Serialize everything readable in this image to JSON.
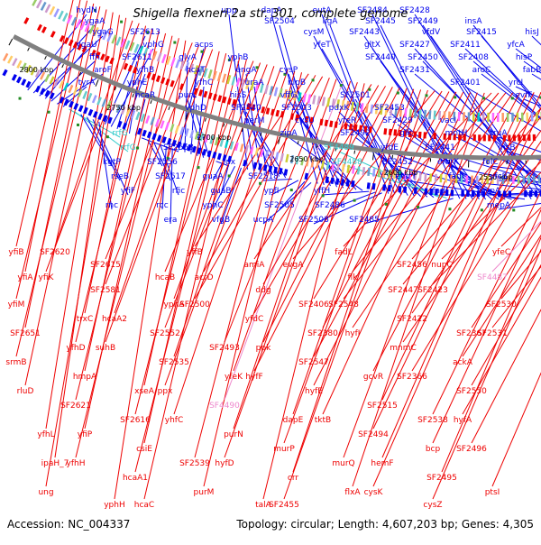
{
  "title": "Shigella flexneri 2a str. 301, complete genome",
  "footer": {
    "accession": "Accession: NC_004337",
    "summary": "Topology: circular; Length: 4,607,203 bp; Genes: 4,305"
  },
  "colors": {
    "forward": "#0000ee",
    "reverse": "#ee0000",
    "rna": "#33cccc",
    "pseudo": "#ee88cc",
    "backbone": "#808080",
    "ticks": "#000000",
    "green": "#228b22"
  },
  "scale_labels": [
    "2800 kbp",
    "2750 kbp",
    "2700 kbp",
    "2650 kbp",
    "2600 kbp",
    "2550 kbp",
    "2500 kbp",
    "2450 kbp"
  ],
  "forward_genes": [
    "hydN",
    "ygaA",
    "ygaG",
    "ygaU",
    "ffh",
    "aroF",
    "tyrA",
    "rrfG",
    "rrfG",
    "kgtP",
    "rseB",
    "yfiF",
    "rnc",
    "SF2613",
    "vphG",
    "SF2611",
    "yfhB",
    "yphE",
    "hcaR",
    "SF2558",
    "SF2556",
    "SF2617",
    "rfic",
    "rcc",
    "era",
    "acps",
    "glyA",
    "hcaT",
    "yfhC",
    "purL",
    "vphD",
    "fdx",
    "guaA",
    "guaB",
    "yphC",
    "vfgB",
    "upp",
    "yphB",
    "engA",
    "uraA",
    "hisS",
    "SF2540",
    "perM",
    "SF2518",
    "ypfI",
    "SF2505",
    "ucpA",
    "dapA",
    "SF2504",
    "cysP",
    "nlpB",
    "vffG",
    "SF2503",
    "cysU",
    "zipA",
    "yffH",
    "SF2486",
    "SF2508",
    "eutA",
    "ligA",
    "cysM",
    "yfeT",
    "SF2501",
    "pdxK",
    "yfeR",
    "SF2492",
    "SF4489",
    "SF4488",
    "SF2485",
    "SF2484",
    "SF2445",
    "SF2443",
    "gltX",
    "SF2440",
    "SF2453",
    "SF2429",
    "glk",
    "yfdE",
    "SF2452",
    "emrY",
    "SF2428",
    "SF2449",
    "vfdV",
    "SF2427",
    "SF2450",
    "SF2431",
    "vacI",
    "mntH",
    "SF2441",
    "emrK",
    "fadI",
    "fadI",
    "insA",
    "SF2415",
    "SF2411",
    "SF2408",
    "aroC",
    "SF2401",
    "truA",
    "insB",
    "folC",
    "yfcB",
    "cvpA",
    "mepA",
    "hisJ",
    "yfcA",
    "hisP",
    "fabB",
    "yrcI",
    "evfF"
  ],
  "reverse_genes": [
    "yfiB",
    "yfiA",
    "yfiM",
    "SF2651",
    "srmB",
    "rluD",
    "yfhL",
    "ipaH_7",
    "ung",
    "SF2620",
    "yfiK",
    "trxC",
    "yfhD",
    "hmpA",
    "SF2621",
    "yfiP",
    "yfhH",
    "yphH",
    "SF2615",
    "SF2581",
    "hcaA2",
    "suhB",
    "xseA",
    "SF2616",
    "csiE",
    "hcaA1",
    "hcaC",
    "hcaB",
    "yphA",
    "SF2552",
    "SF2535",
    "ppx",
    "yhfC",
    "SF2539",
    "purM",
    "yffB",
    "acrD",
    "SF2500",
    "SF2493",
    "yfeK",
    "SF4490",
    "purN",
    "hyfD",
    "talA",
    "amiA",
    "ddg",
    "yfdC",
    "ppk",
    "hyfF",
    "dapE",
    "murP",
    "crr",
    "SF2455",
    "evgA",
    "SF2406",
    "SF2380",
    "SF2547",
    "hyfE",
    "tktB",
    "murQ",
    "flxA",
    "fadL",
    "flk",
    "SF2548",
    "hyfI",
    "gcvR",
    "SF2515",
    "SF2494",
    "hemF",
    "cysK",
    "SF2456",
    "SF2447",
    "SF2422",
    "mnmC",
    "SF2366",
    "SF2538",
    "bcp",
    "SF2495",
    "cysZ",
    "nupC",
    "SF2423",
    "SF2367",
    "ackA",
    "SF2550",
    "hyfA",
    "SF2496",
    "ptsI",
    "yfeC",
    "SF4487",
    "SF2530",
    "SF2531"
  ]
}
